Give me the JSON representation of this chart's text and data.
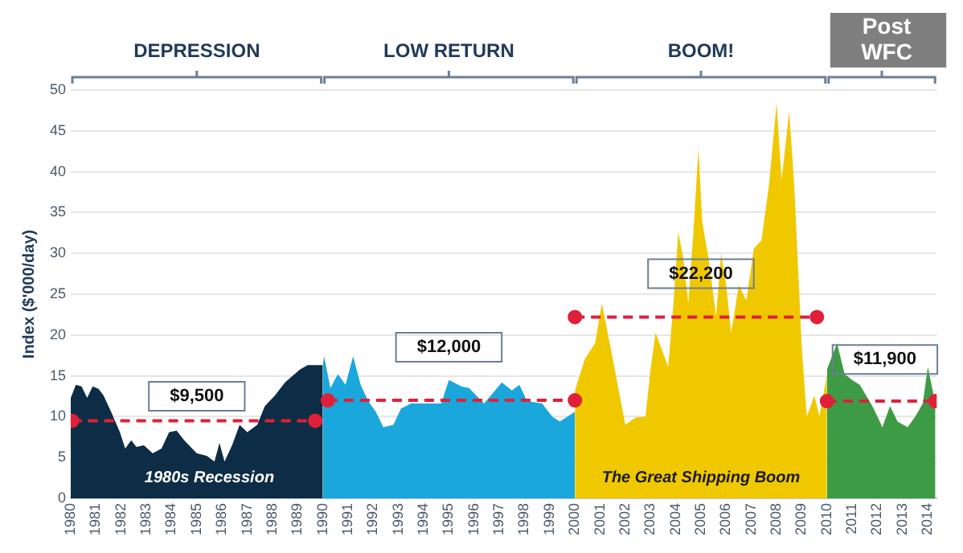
{
  "chart_data": {
    "type": "area",
    "ylabel": "Index ($'000/day)",
    "xlim": [
      1980,
      2014.35
    ],
    "xticks": [
      1980,
      1981,
      1982,
      1983,
      1984,
      1985,
      1986,
      1987,
      1988,
      1989,
      1990,
      1991,
      1992,
      1993,
      1994,
      1995,
      1996,
      1997,
      1998,
      1999,
      2000,
      2001,
      2002,
      2003,
      2004,
      2005,
      2006,
      2007,
      2008,
      2009,
      2010,
      2011,
      2012,
      2013,
      2014
    ],
    "ylim": [
      0,
      50
    ],
    "yticks": [
      0,
      5,
      10,
      15,
      20,
      25,
      30,
      35,
      40,
      45,
      50
    ],
    "grid": "y",
    "legend": false,
    "series": [
      {
        "color": "#0d2c45",
        "x": [
          1980,
          1980.2,
          1980.43,
          1980.65,
          1980.87,
          1981.1,
          1981.3,
          1981.6,
          1981.95,
          1982.16,
          1982.4,
          1982.6,
          1982.9,
          1983.25,
          1983.6,
          1983.9,
          1984.2,
          1984.5,
          1985.0,
          1985.4,
          1985.7,
          1985.9,
          1986.1,
          1986.4,
          1986.7,
          1987.0,
          1987.4,
          1987.7,
          1988.1,
          1988.5,
          1989.1,
          1989.4,
          1990.0
        ],
        "values": [
          12.3,
          13.9,
          13.7,
          12.3,
          13.7,
          13.4,
          12.6,
          10.6,
          8.1,
          6.1,
          7.1,
          6.3,
          6.5,
          5.5,
          6.1,
          8.1,
          8.3,
          7.1,
          5.5,
          5.2,
          4.5,
          6.8,
          4.5,
          6.5,
          9.0,
          8.1,
          9.0,
          11.3,
          12.6,
          14.2,
          15.8,
          16.3,
          16.3
        ]
      },
      {
        "color": "#1aa7dc",
        "x": [
          1990.0,
          1990.05,
          1990.3,
          1990.6,
          1990.9,
          1991.2,
          1991.5,
          1991.8,
          1992.1,
          1992.4,
          1992.8,
          1993.1,
          1993.5,
          1994.0,
          1994.4,
          1994.7,
          1995.0,
          1995.5,
          1995.8,
          1996.4,
          1997.1,
          1997.5,
          1997.8,
          1998.1,
          1998.7,
          1999.1,
          1999.4,
          2000.0
        ],
        "values": [
          16.3,
          17.4,
          13.5,
          15.2,
          13.9,
          17.4,
          13.9,
          11.9,
          10.6,
          8.7,
          9.0,
          11.0,
          11.6,
          11.6,
          11.6,
          11.6,
          14.5,
          13.7,
          13.5,
          11.6,
          14.2,
          13.2,
          13.9,
          11.9,
          11.6,
          10.0,
          9.4,
          10.6
        ]
      },
      {
        "color": "#f0c800",
        "x": [
          2000.0,
          2000.4,
          2000.8,
          2001.07,
          2001.4,
          2002.0,
          2002.4,
          2002.8,
          2003.0,
          2003.2,
          2003.7,
          2003.9,
          2004.1,
          2004.3,
          2004.5,
          2004.7,
          2004.9,
          2005.05,
          2005.3,
          2005.6,
          2005.8,
          2006.0,
          2006.2,
          2006.5,
          2006.8,
          2007.1,
          2007.4,
          2007.7,
          2008.0,
          2008.2,
          2008.5,
          2008.7,
          2009.0,
          2009.2,
          2009.5,
          2009.7,
          2010.0
        ],
        "values": [
          13.2,
          17.1,
          19.0,
          23.9,
          18.7,
          9.0,
          9.9,
          10.0,
          15.8,
          20.3,
          16.1,
          23.5,
          32.6,
          29.4,
          23.9,
          32.6,
          42.9,
          33.9,
          29.4,
          22.3,
          30.0,
          26.1,
          20.3,
          26.1,
          24.2,
          30.6,
          31.6,
          38.4,
          48.4,
          39.0,
          47.4,
          38.4,
          18.4,
          10.0,
          12.6,
          10.0,
          15.2
        ]
      },
      {
        "color": "#3e9b45",
        "x": [
          2010.0,
          2010.4,
          2010.7,
          2011.0,
          2011.3,
          2011.8,
          2012.2,
          2012.5,
          2012.8,
          2013.2,
          2013.5,
          2013.8,
          2014.0,
          2014.3
        ],
        "values": [
          15.8,
          19.0,
          15.2,
          14.5,
          13.9,
          11.3,
          8.7,
          11.3,
          9.4,
          8.7,
          10.0,
          11.6,
          16.1,
          11.6
        ]
      },
      {
        "type": "line",
        "color": "#e0203a",
        "marker": "circle",
        "line_style": "dashed",
        "x": [
          1980.05,
          1989.7
        ],
        "values": [
          9.5,
          9.5
        ]
      },
      {
        "type": "line",
        "color": "#e0203a",
        "marker": "circle",
        "line_style": "dashed",
        "x": [
          1990.2,
          2000.0
        ],
        "values": [
          12.0,
          12.0
        ]
      },
      {
        "type": "line",
        "color": "#e0203a",
        "marker": "circle",
        "line_style": "dashed",
        "x": [
          2000.0,
          2009.6
        ],
        "values": [
          22.2,
          22.2
        ]
      },
      {
        "type": "line",
        "color": "#e0203a",
        "marker": "circle",
        "line_style": "dashed",
        "x": [
          2010.0,
          2014.3
        ],
        "values": [
          11.9,
          11.9
        ]
      }
    ],
    "annotations": [
      "$9,500",
      "$12,000",
      "$22,200",
      "$11,900",
      "1980s Recession",
      "The Great Shipping Boom",
      "DEPRESSION",
      "LOW RETURN",
      "BOOM!",
      "Post WFC"
    ]
  }
}
